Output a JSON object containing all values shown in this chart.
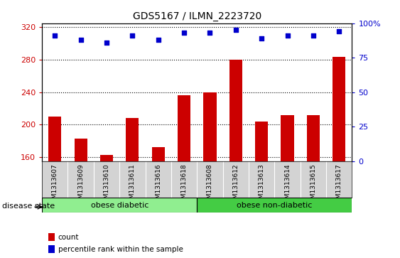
{
  "title": "GDS5167 / ILMN_2223720",
  "samples": [
    "GSM1313607",
    "GSM1313609",
    "GSM1313610",
    "GSM1313611",
    "GSM1313616",
    "GSM1313618",
    "GSM1313608",
    "GSM1313612",
    "GSM1313613",
    "GSM1313614",
    "GSM1313615",
    "GSM1313617"
  ],
  "bar_values": [
    210,
    183,
    163,
    208,
    172,
    236,
    240,
    280,
    204,
    212,
    212,
    284
  ],
  "dot_values": [
    91,
    88,
    86,
    91,
    88,
    93,
    93,
    95,
    89,
    91,
    91,
    94
  ],
  "ylim_left": [
    155,
    325
  ],
  "ylim_right": [
    0,
    100
  ],
  "yticks_left": [
    160,
    200,
    240,
    280,
    320
  ],
  "yticks_right": [
    0,
    25,
    50,
    75,
    100
  ],
  "bar_color": "#cc0000",
  "dot_color": "#0000cc",
  "group1_label": "obese diabetic",
  "group2_label": "obese non-diabetic",
  "group1_count": 6,
  "group2_count": 6,
  "group1_color": "#90ee90",
  "group2_color": "#44cc44",
  "disease_state_label": "disease state",
  "legend_bar_label": "count",
  "legend_dot_label": "percentile rank within the sample",
  "plot_bg_color": "#ffffff",
  "tick_label_bg": "#d3d3d3"
}
